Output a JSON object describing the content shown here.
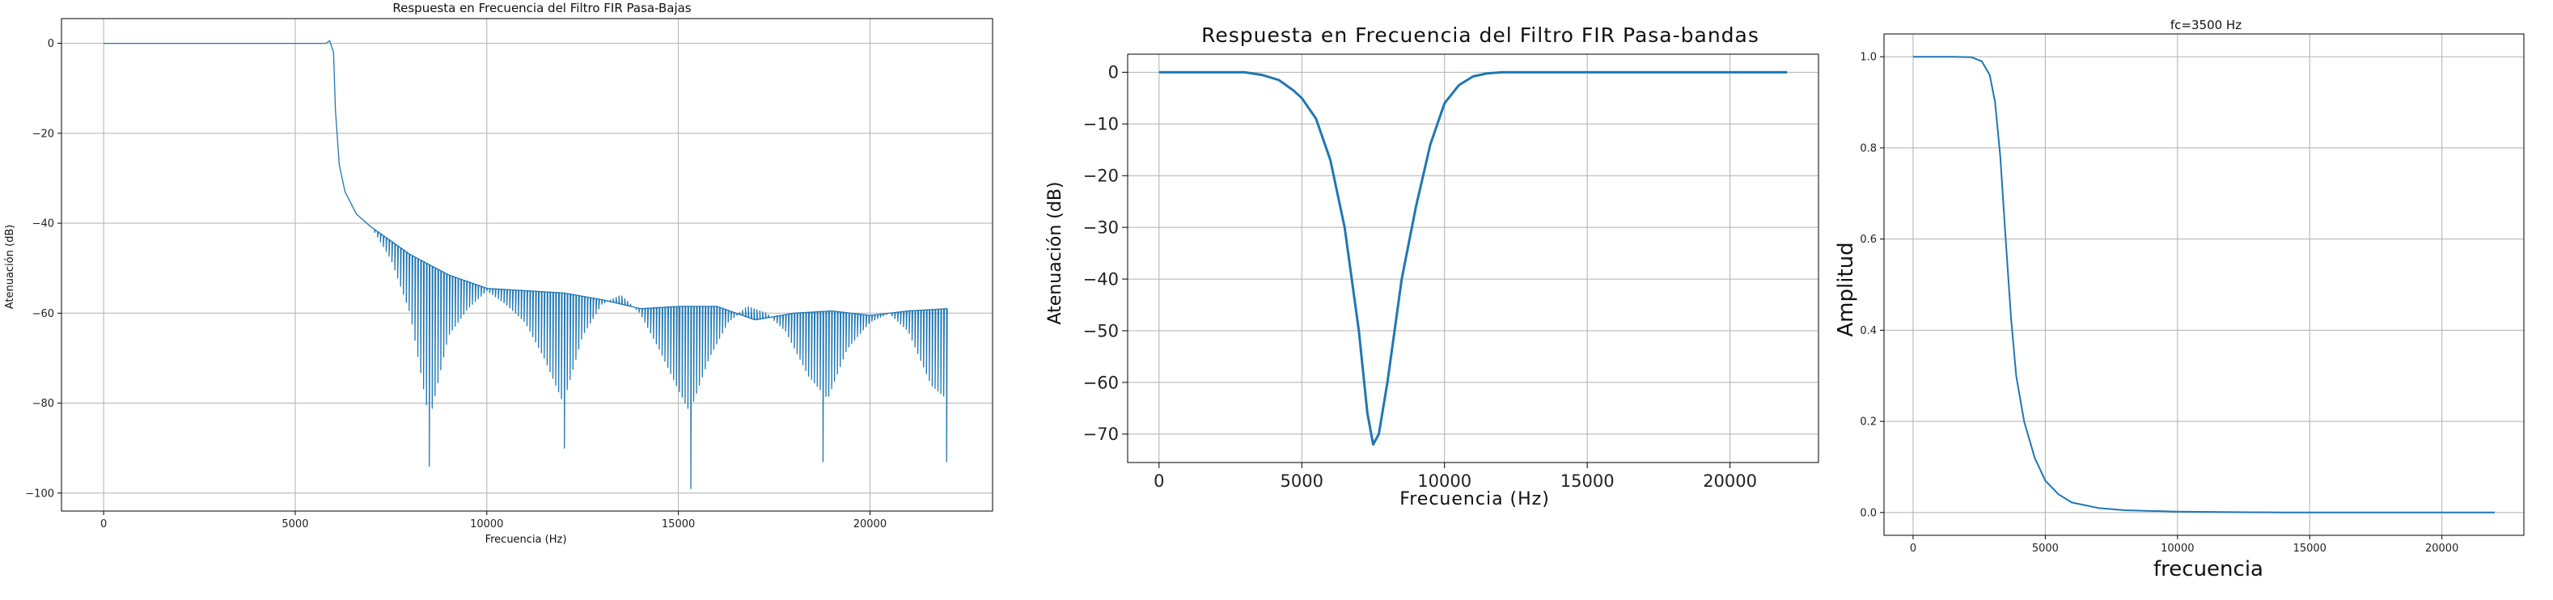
{
  "colors": {
    "line": "#1f77b4",
    "grid": "#b0b0b0",
    "axis": "#000000"
  },
  "chart_data": [
    {
      "type": "line",
      "title": "Respuesta en Frecuencia del Filtro FIR Pasa-Bajas",
      "xlabel": "Frecuencia (Hz)",
      "ylabel": "Atenuación (dB)",
      "xlim": [
        -1100,
        23200
      ],
      "ylim": [
        -104,
        5.5
      ],
      "xticks": [
        0,
        5000,
        10000,
        15000,
        20000
      ],
      "xtick_labels": [
        "0",
        "5000",
        "10000",
        "15000",
        "20000"
      ],
      "yticks": [
        0,
        -20,
        -40,
        -60,
        -80,
        -100
      ],
      "ytick_labels": [
        "0",
        "−20",
        "−40",
        "−60",
        "−80",
        "−100"
      ],
      "grid": true,
      "series": [
        {
          "passband": [
            [
              0,
              0
            ],
            [
              5800,
              0
            ],
            [
              5900,
              0.6
            ],
            [
              6000,
              -2
            ],
            [
              6050,
              -15
            ],
            [
              6150,
              -27
            ],
            [
              6300,
              -33
            ],
            [
              6600,
              -38
            ],
            [
              7000,
              -41
            ]
          ],
          "upper_envelope": [
            [
              6600,
              -38
            ],
            [
              7000,
              -41
            ],
            [
              7500,
              -44
            ],
            [
              8000,
              -47
            ],
            [
              9000,
              -51.5
            ],
            [
              10000,
              -54.5
            ],
            [
              11000,
              -55
            ],
            [
              12000,
              -55.5
            ],
            [
              13000,
              -57
            ],
            [
              14000,
              -59
            ],
            [
              15000,
              -58.5
            ],
            [
              16000,
              -58.5
            ],
            [
              17000,
              -61.5
            ],
            [
              18000,
              -60
            ],
            [
              19000,
              -59.5
            ],
            [
              20000,
              -60.5
            ],
            [
              21000,
              -59.5
            ],
            [
              22000,
              -59
            ]
          ],
          "lower_envelope": [
            [
              7000,
              -41
            ],
            [
              7500,
              -48
            ],
            [
              8000,
              -60
            ],
            [
              8500,
              -84
            ],
            [
              9000,
              -65
            ],
            [
              9500,
              -59
            ],
            [
              10000,
              -55
            ],
            [
              10500,
              -58
            ],
            [
              11000,
              -62
            ],
            [
              11500,
              -70
            ],
            [
              12000,
              -80
            ],
            [
              12500,
              -65
            ],
            [
              13000,
              -58
            ],
            [
              13500,
              -56
            ],
            [
              14000,
              -60
            ],
            [
              14500,
              -68
            ],
            [
              15000,
              -77
            ],
            [
              15300,
              -82
            ],
            [
              15800,
              -70
            ],
            [
              16300,
              -62
            ],
            [
              16800,
              -58.5
            ],
            [
              17300,
              -60
            ],
            [
              17800,
              -64
            ],
            [
              18400,
              -74
            ],
            [
              18900,
              -79
            ],
            [
              19400,
              -68
            ],
            [
              20000,
              -62
            ],
            [
              20500,
              -60
            ],
            [
              21000,
              -64
            ],
            [
              21600,
              -76
            ],
            [
              22000,
              -79
            ]
          ],
          "spikes": [
            [
              8500,
              -94
            ],
            [
              12000,
              -90
            ],
            [
              15300,
              -99
            ],
            [
              18800,
              -93
            ],
            [
              22000,
              -93
            ]
          ]
        }
      ]
    },
    {
      "type": "line",
      "title": "Respuesta en Frecuencia del Filtro FIR Pasa-bandas",
      "xlabel": "Frecuencia (Hz)",
      "ylabel": "Atenuación (dB)",
      "xlim": [
        -1100,
        23100
      ],
      "ylim": [
        -75.5,
        3.5
      ],
      "xticks": [
        0,
        5000,
        10000,
        15000,
        20000
      ],
      "xtick_labels": [
        "0",
        "5000",
        "10000",
        "15000",
        "20000"
      ],
      "yticks": [
        0,
        -10,
        -20,
        -30,
        -40,
        -50,
        -60,
        -70
      ],
      "ytick_labels": [
        "0",
        "−10",
        "−20",
        "−30",
        "−40",
        "−50",
        "−60",
        "−70"
      ],
      "grid": true,
      "series": [
        {
          "points": [
            [
              0,
              0
            ],
            [
              3000,
              0
            ],
            [
              3600,
              -0.5
            ],
            [
              4200,
              -1.5
            ],
            [
              4700,
              -3.5
            ],
            [
              5000,
              -5
            ],
            [
              5500,
              -9
            ],
            [
              6000,
              -17
            ],
            [
              6500,
              -30
            ],
            [
              7000,
              -50
            ],
            [
              7300,
              -66
            ],
            [
              7500,
              -72
            ],
            [
              7700,
              -70
            ],
            [
              8000,
              -60
            ],
            [
              8500,
              -40
            ],
            [
              9000,
              -26
            ],
            [
              9500,
              -14
            ],
            [
              10000,
              -6
            ],
            [
              10500,
              -2.5
            ],
            [
              11000,
              -0.8
            ],
            [
              11500,
              -0.2
            ],
            [
              12000,
              0
            ],
            [
              22000,
              0
            ]
          ]
        }
      ]
    },
    {
      "type": "line",
      "title": "fc=3500 Hz",
      "xlabel": "frecuencia",
      "ylabel": "Amplitud",
      "xlim": [
        -1100,
        23100
      ],
      "ylim": [
        -0.05,
        1.05
      ],
      "xticks": [
        0,
        5000,
        10000,
        15000,
        20000
      ],
      "xtick_labels": [
        "0",
        "5000",
        "10000",
        "15000",
        "20000"
      ],
      "yticks": [
        0.0,
        0.2,
        0.4,
        0.6,
        0.8,
        1.0
      ],
      "ytick_labels": [
        "0.0",
        "0.2",
        "0.4",
        "0.6",
        "0.8",
        "1.0"
      ],
      "grid": true,
      "series": [
        {
          "points": [
            [
              0,
              1.0
            ],
            [
              1500,
              1.0
            ],
            [
              2200,
              0.999
            ],
            [
              2600,
              0.99
            ],
            [
              2900,
              0.96
            ],
            [
              3100,
              0.9
            ],
            [
              3300,
              0.78
            ],
            [
              3500,
              0.6
            ],
            [
              3700,
              0.43
            ],
            [
              3900,
              0.3
            ],
            [
              4200,
              0.2
            ],
            [
              4600,
              0.12
            ],
            [
              5000,
              0.07
            ],
            [
              5500,
              0.04
            ],
            [
              6000,
              0.022
            ],
            [
              7000,
              0.01
            ],
            [
              8000,
              0.005
            ],
            [
              10000,
              0.002
            ],
            [
              14000,
              0.0
            ],
            [
              22000,
              0.0
            ]
          ]
        }
      ]
    }
  ]
}
